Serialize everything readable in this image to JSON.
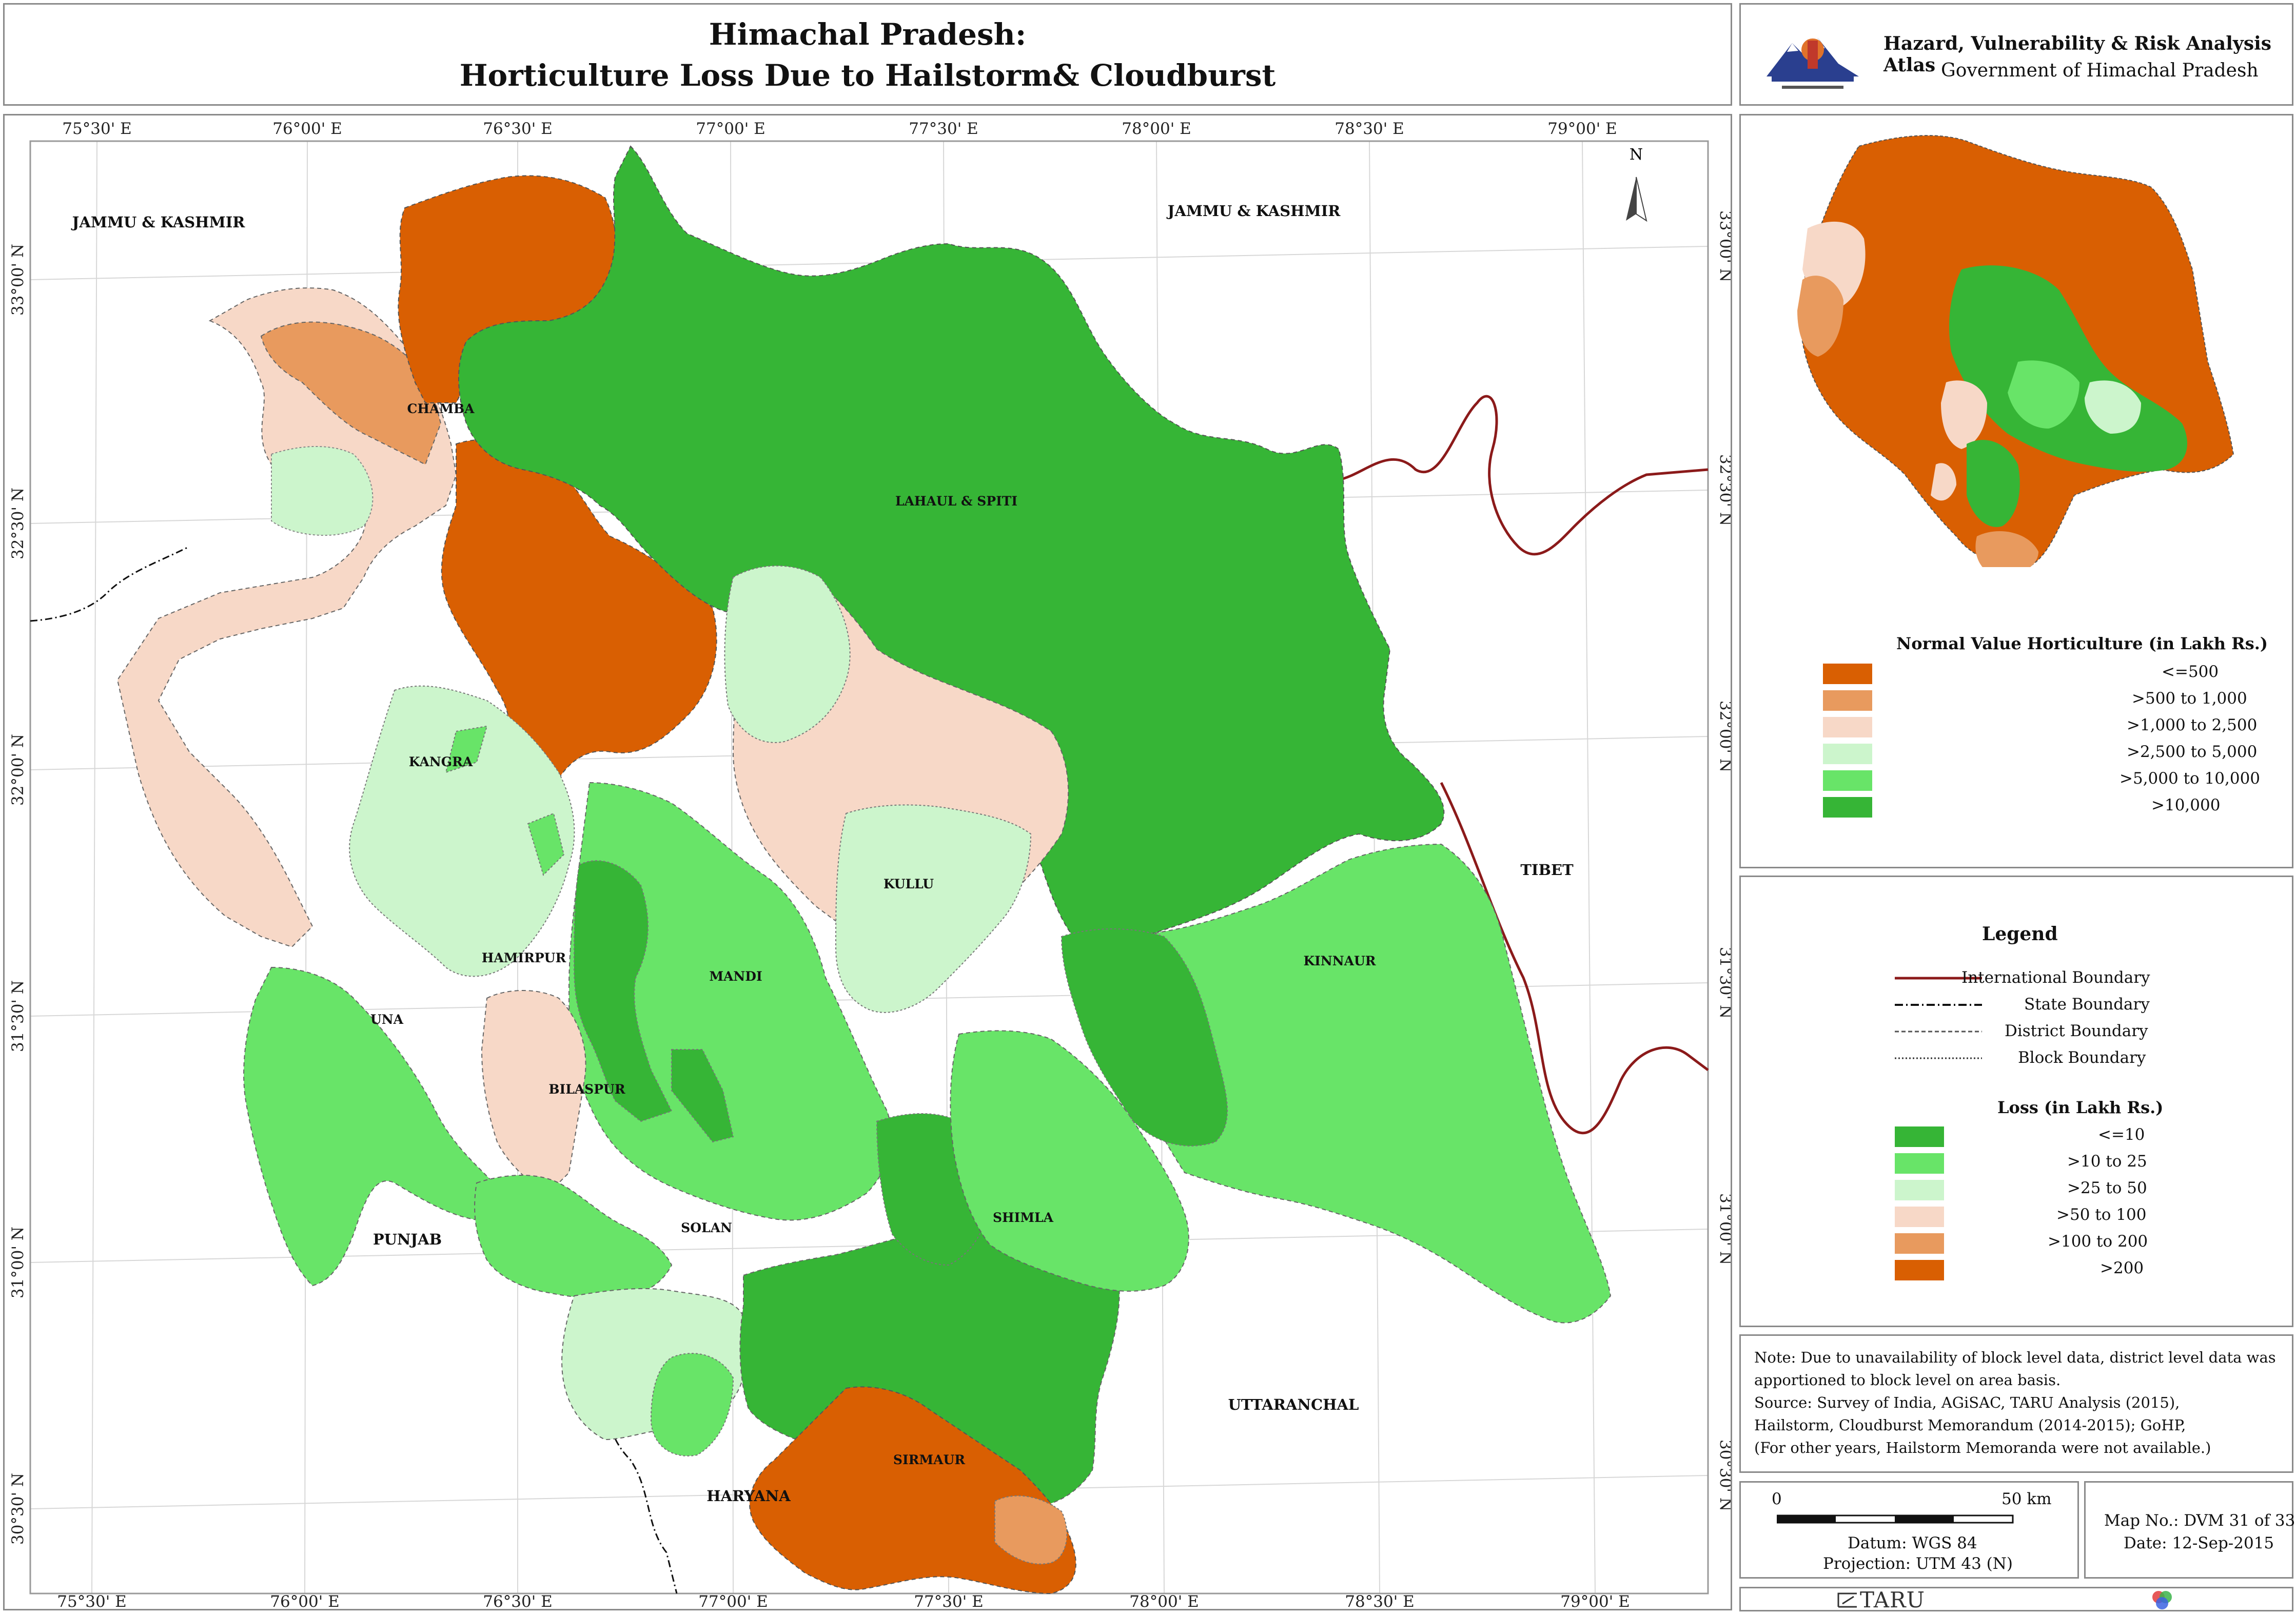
{
  "header": {
    "title_line1": "Himachal Pradesh:",
    "title_line2": "Horticulture Loss Due to Hailstorm& Cloudburst"
  },
  "atlas": {
    "title": "Hazard, Vulnerability & Risk Analysis Atlas",
    "subtitle": "Government of Himachal Pradesh",
    "emblem": "state-emblem-icon"
  },
  "map": {
    "longitude_ticks": [
      "75°30' E",
      "76°00' E",
      "76°30' E",
      "77°00' E",
      "77°30' E",
      "78°00' E",
      "78°30' E",
      "79°00' E"
    ],
    "latitude_ticks": [
      "33°00' N",
      "32°30' N",
      "32°00' N",
      "31°30' N",
      "31°00' N",
      "30°30' N"
    ],
    "north_label": "N",
    "districts": [
      {
        "name": "CHAMBA",
        "loss_class": ">200"
      },
      {
        "name": "LAHAUL & SPITI",
        "loss_class": "<=10"
      },
      {
        "name": "KANGRA",
        "loss_class": ">25 to 50"
      },
      {
        "name": "KULLU",
        "loss_class": ">25 to 50"
      },
      {
        "name": "HAMIRPUR",
        "loss_class": ">50 to 100"
      },
      {
        "name": "MANDI",
        "loss_class": ">10 to 25"
      },
      {
        "name": "UNA",
        "loss_class": ">10 to 25"
      },
      {
        "name": "BILASPUR",
        "loss_class": ">10 to 25"
      },
      {
        "name": "SOLAN",
        "loss_class": ">25 to 50"
      },
      {
        "name": "SHIMLA",
        "loss_class": "<=10"
      },
      {
        "name": "KINNAUR",
        "loss_class": ">10 to 25"
      },
      {
        "name": "SIRMAUR",
        "loss_class": ">200"
      }
    ],
    "neighbours": [
      "JAMMU & KASHMIR",
      "JAMMU & KASHMIR",
      "TIBET",
      "PUNJAB",
      "UTTARANCHAL",
      "HARYANA"
    ]
  },
  "inset": {
    "title": "Normal Value Horticulture (in Lakh Rs.)",
    "classes": [
      {
        "label": "<=500",
        "color": "#d95f02"
      },
      {
        "label": ">500 to 1,000",
        "color": "#e89a5e"
      },
      {
        "label": ">1,000 to 2,500",
        "color": "#f7d8c7"
      },
      {
        "label": ">2,500 to 5,000",
        "color": "#ccf5cc"
      },
      {
        "label": ">5,000 to 10,000",
        "color": "#68e468"
      },
      {
        "label": ">10,000",
        "color": "#36b536"
      }
    ]
  },
  "legend": {
    "title": "Legend",
    "lines": [
      {
        "label": "International Boundary",
        "color": "#8b1a1a"
      },
      {
        "label": "State Boundary",
        "color": "#111111"
      },
      {
        "label": "District Boundary",
        "color": "#555555"
      },
      {
        "label": "Block Boundary",
        "color": "#333333"
      }
    ],
    "loss_title": "Loss (in Lakh Rs.)",
    "loss_classes": [
      {
        "label": "<=10",
        "color": "#36b536"
      },
      {
        "label": ">10 to 25",
        "color": "#68e468"
      },
      {
        "label": ">25 to 50",
        "color": "#ccf5cc"
      },
      {
        "label": ">50 to 100",
        "color": "#f7d8c7"
      },
      {
        "label": ">100 to 200",
        "color": "#e89a5e"
      },
      {
        "label": ">200",
        "color": "#d95f02"
      }
    ]
  },
  "note": {
    "lines": [
      "Note:  Due to unavailability of block level data, district level data was",
      "apportioned to block level on area basis.",
      "Source: Survey of India, AGiSAC, TARU Analysis (2015),",
      "Hailstorm, Cloudburst Memorandum (2014-2015); GoHP,",
      "(For other years, Hailstorm Memoranda were not available.)"
    ]
  },
  "scale": {
    "start": "0",
    "end": "50 km",
    "datum": "Datum: WGS 84",
    "projection": "Projection: UTM 43 (N)"
  },
  "mapinfo": {
    "map_no": "Map No.: DVM 31 of 33",
    "date": "Date: 12-Sep-2015"
  },
  "footer": {
    "org": "TARU",
    "logo": "taru-logo-icon",
    "badge": "rgb-circles-icon"
  }
}
